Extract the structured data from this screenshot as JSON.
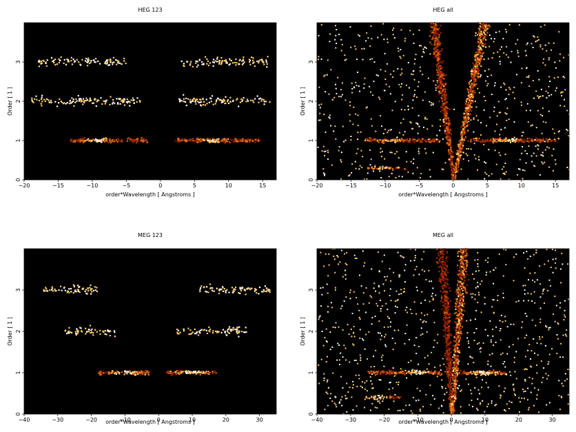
{
  "chart_data": [
    {
      "type": "heatmap",
      "title": "HEG 123",
      "xlabel": "order*Wavelength [ Angstroms ]",
      "ylabel": "Order [ 1 ]",
      "xlim": [
        -20,
        17
      ],
      "ylim": [
        0,
        4
      ],
      "xticks": [
        -20,
        -15,
        -10,
        -5,
        0,
        5,
        10,
        15
      ],
      "yticks": [
        0,
        1,
        2,
        3
      ],
      "colormap": [
        "#000000",
        "#4a0800",
        "#a02800",
        "#e06a10",
        "#ffd070",
        "#ffffff"
      ],
      "background": "#000000",
      "bands": [
        {
          "order": 1,
          "x_ranges": [
            [
              -13.5,
              -2.0
            ],
            [
              2.0,
              14.5
            ]
          ],
          "peaks": [
            -9.5,
            7.5
          ],
          "intensity": 0.9
        },
        {
          "order": 2,
          "x_ranges": [
            [
              -19,
              -3
            ],
            [
              2.5,
              16
            ]
          ],
          "peaks": [],
          "intensity": 0.35
        },
        {
          "order": 3,
          "x_ranges": [
            [
              -18,
              -5
            ],
            [
              3,
              16
            ]
          ],
          "peaks": [],
          "intensity": 0.2
        }
      ]
    },
    {
      "type": "heatmap",
      "title": "HEG all",
      "xlabel": "order*Wavelength [ Angstroms ]",
      "ylabel": "Order [ 1 ]",
      "xlim": [
        -20,
        17
      ],
      "ylim": [
        0,
        4
      ],
      "xticks": [
        -20,
        -15,
        -10,
        -5,
        0,
        5,
        10,
        15
      ],
      "yticks": [
        0,
        1,
        2,
        3
      ],
      "colormap": [
        "#000000",
        "#4a0800",
        "#a02800",
        "#e06a10",
        "#ffd070",
        "#ffffff"
      ],
      "background": "#000000",
      "bands": [
        {
          "order": 1,
          "x_ranges": [
            [
              -13,
              -2
            ],
            [
              2,
              15
            ]
          ],
          "peaks": [
            -9.5,
            8
          ],
          "intensity": 0.8
        },
        {
          "order": 0.3,
          "x_ranges": [
            [
              -13,
              -7
            ]
          ],
          "peaks": [
            -11
          ],
          "intensity": 0.9
        }
      ],
      "wedges": [
        {
          "x0": 0,
          "x1_top": -3.0,
          "intensity": 0.7
        },
        {
          "x0": 0,
          "x1_top": 4.5,
          "intensity": 0.9
        }
      ],
      "noise": 0.28
    },
    {
      "type": "heatmap",
      "title": "MEG 123",
      "xlabel": "order*Wavelength [ Angstroms ]",
      "ylabel": "Order [ 1 ]",
      "xlim": [
        -40,
        35
      ],
      "ylim": [
        0,
        4
      ],
      "xticks": [
        -40,
        -30,
        -20,
        -10,
        0,
        10,
        20,
        30
      ],
      "yticks": [
        0,
        1,
        2,
        3
      ],
      "colormap": [
        "#000000",
        "#4a0800",
        "#a02800",
        "#e06a10",
        "#ffd070",
        "#ffffff"
      ],
      "background": "#000000",
      "bands": [
        {
          "order": 1,
          "x_ranges": [
            [
              -18,
              -3
            ],
            [
              2,
              17
            ]
          ],
          "peaks": [
            -10,
            10
          ],
          "intensity": 1.0
        },
        {
          "order": 2,
          "x_ranges": [
            [
              -28,
              -13
            ],
            [
              5,
              26
            ]
          ],
          "peaks": [],
          "intensity": 0.3
        },
        {
          "order": 3,
          "x_ranges": [
            [
              -35,
              -18
            ],
            [
              12,
              33
            ]
          ],
          "peaks": [],
          "intensity": 0.3
        }
      ]
    },
    {
      "type": "heatmap",
      "title": "MEG all",
      "xlabel": "order*Wavelength [ Angstroms ]",
      "ylabel": "Order [ 1 ]",
      "xlim": [
        -40,
        35
      ],
      "ylim": [
        0,
        4
      ],
      "xticks": [
        -40,
        -30,
        -20,
        -10,
        0,
        10,
        20,
        30
      ],
      "yticks": [
        0,
        1,
        2,
        3
      ],
      "colormap": [
        "#000000",
        "#4a0800",
        "#a02800",
        "#e06a10",
        "#ffd070",
        "#ffffff"
      ],
      "background": "#000000",
      "bands": [
        {
          "order": 1,
          "x_ranges": [
            [
              -25,
              -2
            ],
            [
              2,
              16
            ]
          ],
          "peaks": [
            -10,
            9
          ],
          "intensity": 0.9
        },
        {
          "order": 0.4,
          "x_ranges": [
            [
              -26,
              -15
            ]
          ],
          "peaks": [
            -22
          ],
          "intensity": 0.8
        }
      ],
      "wedges": [
        {
          "x0": 0,
          "x1_top": -3.0,
          "intensity": 0.6
        },
        {
          "x0": 0,
          "x1_top": 3.5,
          "intensity": 0.9
        }
      ],
      "noise": 0.32
    }
  ]
}
